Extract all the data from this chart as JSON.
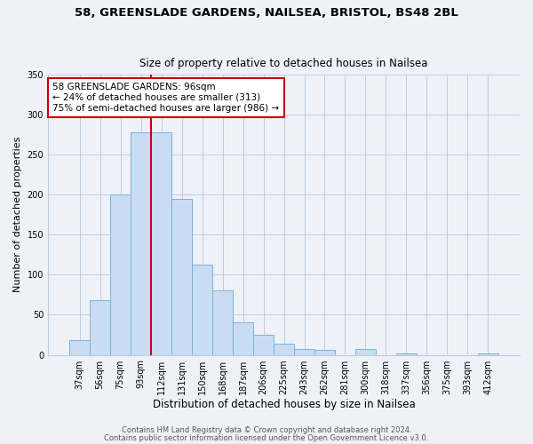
{
  "title1": "58, GREENSLADE GARDENS, NAILSEA, BRISTOL, BS48 2BL",
  "title2": "Size of property relative to detached houses in Nailsea",
  "xlabel": "Distribution of detached houses by size in Nailsea",
  "ylabel": "Number of detached properties",
  "bar_labels": [
    "37sqm",
    "56sqm",
    "75sqm",
    "93sqm",
    "112sqm",
    "131sqm",
    "150sqm",
    "168sqm",
    "187sqm",
    "206sqm",
    "225sqm",
    "243sqm",
    "262sqm",
    "281sqm",
    "300sqm",
    "318sqm",
    "337sqm",
    "356sqm",
    "375sqm",
    "393sqm",
    "412sqm"
  ],
  "bar_values": [
    18,
    68,
    200,
    278,
    278,
    195,
    113,
    80,
    40,
    25,
    14,
    7,
    6,
    0,
    7,
    0,
    2,
    0,
    0,
    0,
    2
  ],
  "bar_color": "#c9ddf2",
  "bar_edge_color": "#7ab0d8",
  "vline_x": 3.5,
  "vline_color": "#cc0000",
  "ylim": [
    0,
    350
  ],
  "yticks": [
    0,
    50,
    100,
    150,
    200,
    250,
    300,
    350
  ],
  "annotation_text": "58 GREENSLADE GARDENS: 96sqm\n← 24% of detached houses are smaller (313)\n75% of semi-detached houses are larger (986) →",
  "annotation_box_color": "#ffffff",
  "annotation_box_edge": "#cc0000",
  "footer1": "Contains HM Land Registry data © Crown copyright and database right 2024.",
  "footer2": "Contains public sector information licensed under the Open Government Licence v3.0.",
  "background_color": "#eef2f8",
  "plot_background": "#eef2f8",
  "grid_color": "#c0ccdd"
}
